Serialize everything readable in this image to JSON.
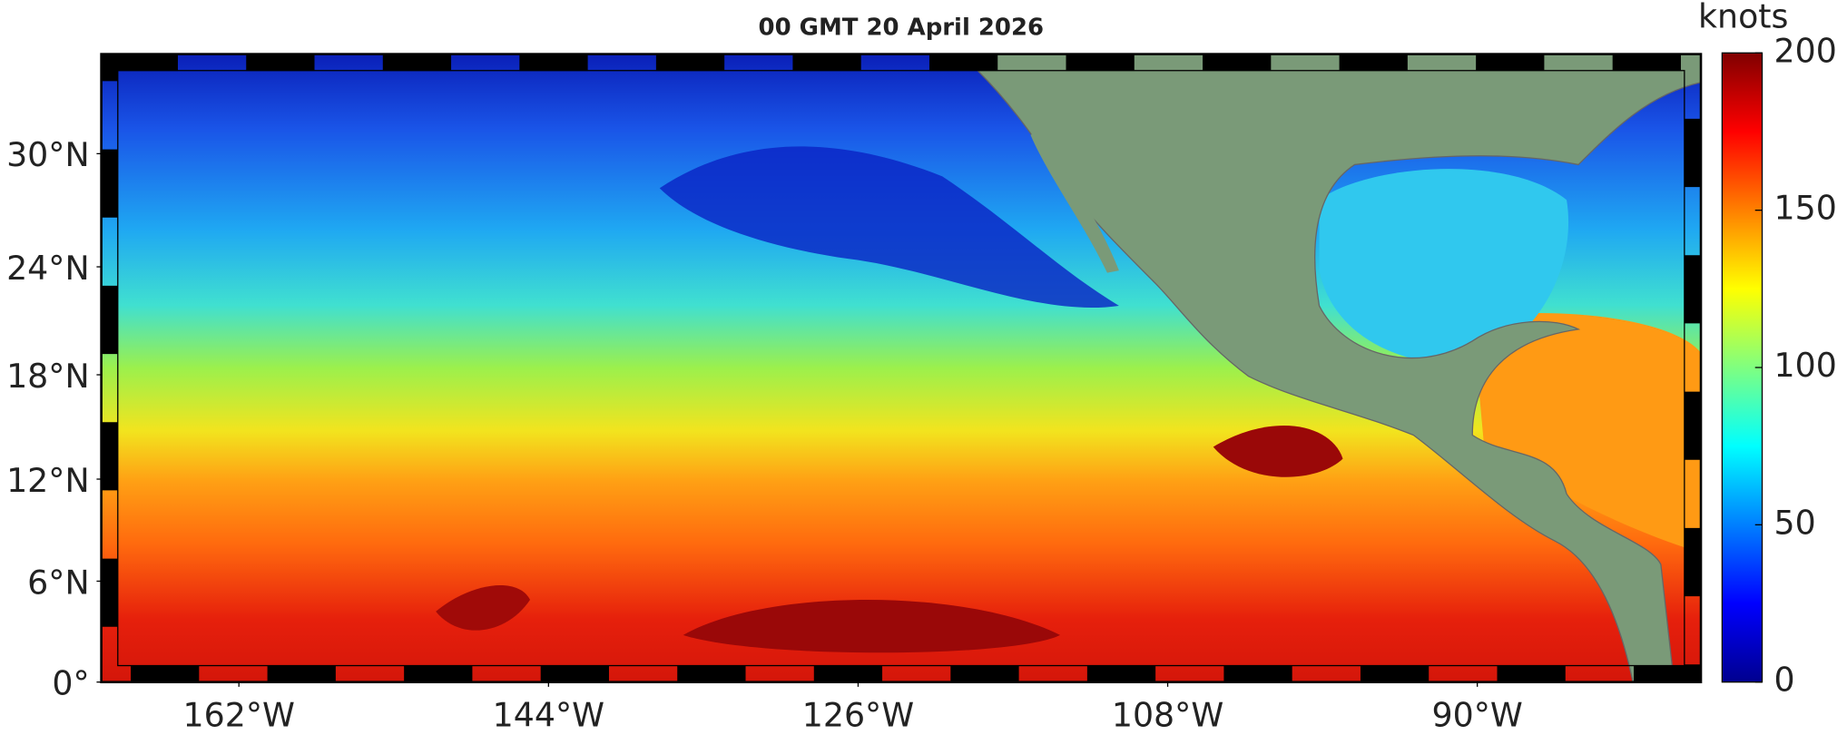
{
  "chart_data": {
    "type": "map",
    "title": "00 GMT 20 April 2026",
    "xlim": [
      -170,
      -77
    ],
    "ylim": [
      0,
      35
    ],
    "xticks": [
      {
        "value": -162,
        "label": "162°W"
      },
      {
        "value": -144,
        "label": "144°W"
      },
      {
        "value": -126,
        "label": "126°W"
      },
      {
        "value": -108,
        "label": "108°W"
      },
      {
        "value": -90,
        "label": "90°W"
      }
    ],
    "yticks": [
      {
        "value": 0,
        "label": "0°"
      },
      {
        "value": 6,
        "label": "6°N"
      },
      {
        "value": 12,
        "label": "12°N"
      },
      {
        "value": 18,
        "label": "18°N"
      },
      {
        "value": 24,
        "label": "24°N"
      },
      {
        "value": 30,
        "label": "30°N"
      }
    ],
    "colorbar": {
      "label": "knots",
      "lim": [
        0,
        200
      ],
      "ticks": [
        0,
        50,
        100,
        150,
        200
      ]
    }
  }
}
